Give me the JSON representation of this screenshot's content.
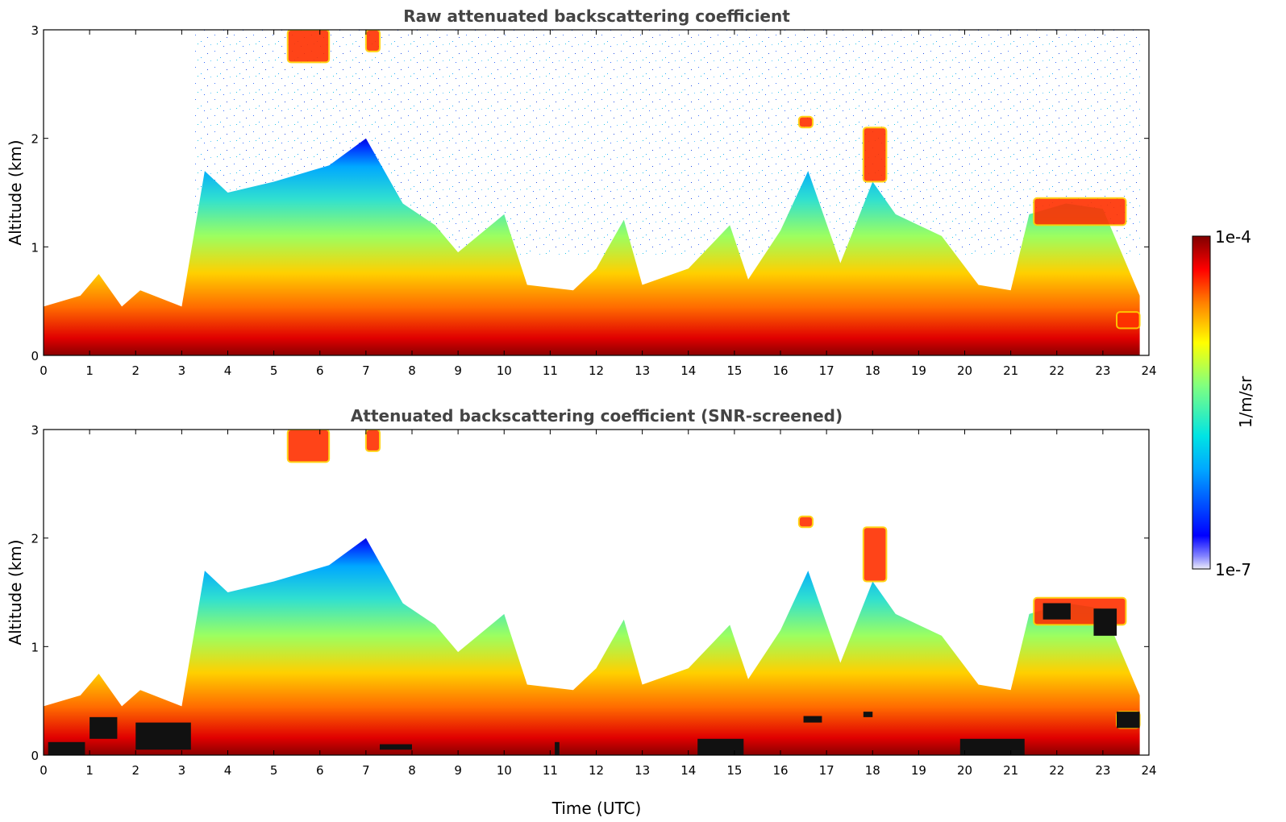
{
  "chart_data": [
    {
      "type": "heatmap",
      "title": "Raw attenuated backscattering coefficient",
      "xlabel": "",
      "ylabel": "Altitude (km)",
      "xlim": [
        0,
        24
      ],
      "ylim": [
        0,
        3
      ],
      "x_ticks": [
        "0",
        "1",
        "2",
        "3",
        "4",
        "5",
        "6",
        "7",
        "8",
        "9",
        "10",
        "11",
        "12",
        "13",
        "14",
        "15",
        "16",
        "17",
        "18",
        "19",
        "20",
        "21",
        "22",
        "23",
        "24"
      ],
      "y_ticks": [
        "0",
        "1",
        "2",
        "3"
      ],
      "boundary_layer_top_km": [
        [
          0,
          0.45
        ],
        [
          0.8,
          0.55
        ],
        [
          1.2,
          0.75
        ],
        [
          1.7,
          0.45
        ],
        [
          2.1,
          0.6
        ],
        [
          3.0,
          0.45
        ],
        [
          3.5,
          1.7
        ],
        [
          4.0,
          1.5
        ],
        [
          5.0,
          1.6
        ],
        [
          6.2,
          1.75
        ],
        [
          7.0,
          2.0
        ],
        [
          7.8,
          1.4
        ],
        [
          8.5,
          1.2
        ],
        [
          9.0,
          0.95
        ],
        [
          10.0,
          1.3
        ],
        [
          10.5,
          0.65
        ],
        [
          11.5,
          0.6
        ],
        [
          12.0,
          0.8
        ],
        [
          12.6,
          1.25
        ],
        [
          13.0,
          0.65
        ],
        [
          14.0,
          0.8
        ],
        [
          14.9,
          1.2
        ],
        [
          15.3,
          0.7
        ],
        [
          16.0,
          1.15
        ],
        [
          16.6,
          1.7
        ],
        [
          17.3,
          0.85
        ],
        [
          18.0,
          1.6
        ],
        [
          18.5,
          1.3
        ],
        [
          19.5,
          1.1
        ],
        [
          20.3,
          0.65
        ],
        [
          21.0,
          0.6
        ],
        [
          21.4,
          1.3
        ],
        [
          22.2,
          1.4
        ],
        [
          23.0,
          1.35
        ],
        [
          23.8,
          0.55
        ]
      ],
      "cloud_features": [
        {
          "time_utc": [
            5.3,
            6.2
          ],
          "altitude_km": [
            2.7,
            3.0
          ]
        },
        {
          "time_utc": [
            7.0,
            7.3
          ],
          "altitude_km": [
            2.8,
            3.0
          ]
        },
        {
          "time_utc": [
            16.4,
            16.7
          ],
          "altitude_km": [
            2.1,
            2.2
          ]
        },
        {
          "time_utc": [
            17.8,
            18.3
          ],
          "altitude_km": [
            1.6,
            2.1
          ]
        },
        {
          "time_utc": [
            21.5,
            23.5
          ],
          "altitude_km": [
            1.2,
            1.45
          ]
        },
        {
          "time_utc": [
            23.3,
            23.8
          ],
          "altitude_km": [
            0.25,
            0.4
          ]
        }
      ],
      "colormap": "jet",
      "clim": [
        "1e-7",
        "1e-4"
      ]
    },
    {
      "type": "heatmap",
      "title": "Attenuated backscattering coefficient (SNR-screened)",
      "xlabel": "Time (UTC)",
      "ylabel": "Altitude (km)",
      "xlim": [
        0,
        24
      ],
      "ylim": [
        0,
        3
      ],
      "x_ticks": [
        "0",
        "1",
        "2",
        "3",
        "4",
        "5",
        "6",
        "7",
        "8",
        "9",
        "10",
        "11",
        "12",
        "13",
        "14",
        "15",
        "16",
        "17",
        "18",
        "19",
        "20",
        "21",
        "22",
        "23",
        "24"
      ],
      "y_ticks": [
        "0",
        "1",
        "2",
        "3"
      ],
      "colormap": "jet",
      "clim": [
        "1e-7",
        "1e-4"
      ]
    }
  ],
  "colorbar": {
    "max_label": "1e-4",
    "min_label": "1e-7",
    "unit_label": "1/m/sr",
    "colors": [
      "#e8e8f8",
      "#0000ff",
      "#00a0ff",
      "#00e0e0",
      "#80ff80",
      "#ffff00",
      "#ff8000",
      "#ff0000",
      "#800000"
    ]
  }
}
